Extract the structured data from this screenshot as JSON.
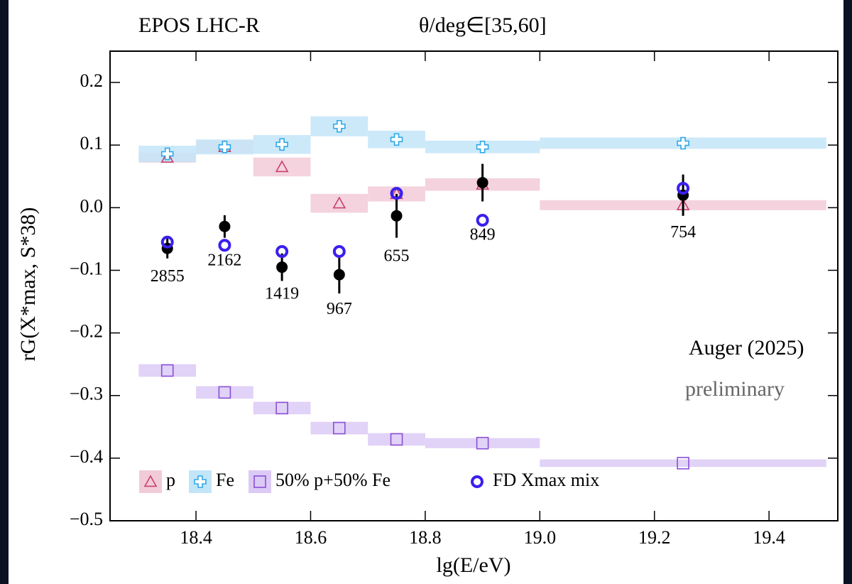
{
  "chart_data": {
    "type": "binned-scatter",
    "title": "EPOS LHC-R",
    "subtitle": "θ/deg∈[35,60]",
    "x_label": "lg(E/eV)",
    "y_label": "rG(X*max, S*38)",
    "annotations": [
      "Auger (2025)",
      "preliminary"
    ],
    "bins": [
      18.3,
      18.4,
      18.5,
      18.6,
      18.7,
      18.8,
      19.0,
      19.5
    ],
    "x": [
      18.35,
      18.45,
      18.55,
      18.65,
      18.75,
      18.9,
      19.25
    ],
    "xlim": [
      18.25,
      19.52
    ],
    "ylim": [
      -0.5,
      0.25
    ],
    "xticks": [
      18.4,
      18.6,
      18.8,
      {
        "value": 19.0,
        "label": "19.0"
      },
      19.2,
      19.4
    ],
    "yticks": [
      0.2,
      0.1,
      {
        "value": 0,
        "label": "0.0"
      },
      {
        "value": -0.1,
        "label": "−0.1"
      },
      {
        "value": -0.2,
        "label": "−0.2"
      },
      {
        "value": -0.3,
        "label": "−0.3"
      },
      {
        "value": -0.4,
        "label": "−0.4"
      },
      {
        "value": -0.5,
        "label": "−0.5"
      }
    ],
    "legend_position": "lower left",
    "series": [
      {
        "name": "p",
        "marker": "triangle",
        "color": "#c8416e",
        "band_color": "#f2cbd8",
        "values": [
          0.08,
          0.097,
          0.065,
          0.007,
          0.022,
          0.037,
          0.004
        ],
        "errors": [
          0.008,
          0.01,
          0.015,
          0.015,
          0.012,
          0.01,
          0.008
        ]
      },
      {
        "name": "Fe",
        "marker": "cross",
        "color": "#2ea8e8",
        "band_color": "#c3e5f8",
        "values": [
          0.086,
          0.097,
          0.101,
          0.13,
          0.109,
          0.097,
          0.103
        ],
        "errors": [
          0.013,
          0.012,
          0.015,
          0.016,
          0.014,
          0.01,
          0.009
        ]
      },
      {
        "name": "50% p+50% Fe",
        "marker": "square",
        "color": "#8a4fd6",
        "band_color": "#dccaf6",
        "values": [
          -0.26,
          -0.295,
          -0.32,
          -0.352,
          -0.37,
          -0.376,
          -0.408
        ],
        "errors": [
          0.01,
          0.01,
          0.01,
          0.01,
          0.01,
          0.008,
          0.006
        ]
      },
      {
        "name": "FD Xmax mix",
        "marker": "circle",
        "color": "#3a1ff0",
        "values": [
          -0.055,
          -0.06,
          -0.07,
          -0.07,
          0.023,
          -0.02,
          0.031
        ]
      }
    ],
    "measurement": {
      "color": "#000000",
      "values": [
        -0.065,
        -0.03,
        -0.095,
        -0.107,
        -0.013,
        0.04,
        0.02
      ],
      "errors": [
        0.016,
        0.018,
        0.022,
        0.03,
        0.035,
        0.03,
        0.033
      ],
      "counts": [
        2855,
        2162,
        1419,
        967,
        655,
        849,
        754
      ]
    }
  }
}
